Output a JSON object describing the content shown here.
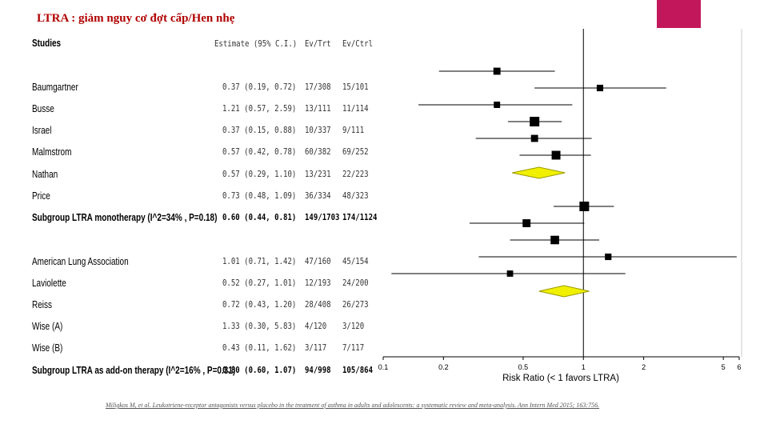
{
  "slide": {
    "title": "LTRA : giảm nguy cơ đợt cấp/Hen nhẹ",
    "citation": "Miligkos M, et al. Leukotriene-receptor antagonists versus placebo in the treatment of asthma in adults and adolescents: a systematic review and meta-analysis. Ann Intern Med 2015; 163:756."
  },
  "table": {
    "headers": {
      "studies": "Studies",
      "estimate": "Estimate (95% C.I.)",
      "ev_trt": "Ev/Trt",
      "ev_ctrl": "Ev/Ctrl"
    }
  },
  "chart_data": {
    "type": "forest",
    "xlabel": "Risk Ratio (< 1 favors LTRA)",
    "x_scale": "log",
    "xlim": [
      0.1,
      6
    ],
    "x_ticks": [
      "0.1",
      "0.2",
      "0.5",
      "1",
      "2",
      "5",
      "6"
    ],
    "reference_line": 1,
    "rows": [
      {
        "study": "Baumgartner",
        "estimate": "0.37 (0.19, 0.72)",
        "ev_trt": "17/308",
        "ev_ctrl": "15/101",
        "rr": 0.37,
        "lo": 0.19,
        "hi": 0.72,
        "weight": 0.55,
        "kind": "study"
      },
      {
        "study": "Busse",
        "estimate": "1.21 (0.57, 2.59)",
        "ev_trt": "13/111",
        "ev_ctrl": "11/114",
        "rr": 1.21,
        "lo": 0.57,
        "hi": 2.59,
        "weight": 0.45,
        "kind": "study"
      },
      {
        "study": "Israel",
        "estimate": "0.37 (0.15, 0.88)",
        "ev_trt": "10/337",
        "ev_ctrl": "9/111",
        "rr": 0.37,
        "lo": 0.15,
        "hi": 0.88,
        "weight": 0.42,
        "kind": "study"
      },
      {
        "study": "Malmstrom",
        "estimate": "0.57 (0.42, 0.78)",
        "ev_trt": "60/382",
        "ev_ctrl": "69/252",
        "rr": 0.57,
        "lo": 0.42,
        "hi": 0.78,
        "weight": 1.0,
        "kind": "study"
      },
      {
        "study": "Nathan",
        "estimate": "0.57 (0.29, 1.10)",
        "ev_trt": "13/231",
        "ev_ctrl": "22/223",
        "rr": 0.57,
        "lo": 0.29,
        "hi": 1.1,
        "weight": 0.55,
        "kind": "study"
      },
      {
        "study": "Price",
        "estimate": "0.73 (0.48, 1.09)",
        "ev_trt": "36/334",
        "ev_ctrl": "48/323",
        "rr": 0.73,
        "lo": 0.48,
        "hi": 1.09,
        "weight": 0.85,
        "kind": "study"
      },
      {
        "study": "Subgroup LTRA monotherapy (I^2=34% , P=0.18)",
        "estimate": "0.60 (0.44, 0.81)",
        "ev_trt": "149/1703",
        "ev_ctrl": "174/1124",
        "rr": 0.6,
        "lo": 0.44,
        "hi": 0.81,
        "kind": "subgroup"
      },
      {
        "study": "American Lung Association",
        "estimate": "1.01 (0.71, 1.42)",
        "ev_trt": "47/160",
        "ev_ctrl": "45/154",
        "rr": 1.01,
        "lo": 0.71,
        "hi": 1.42,
        "weight": 1.0,
        "kind": "study"
      },
      {
        "study": "Laviolette",
        "estimate": "0.52 (0.27, 1.01)",
        "ev_trt": "12/193",
        "ev_ctrl": "24/200",
        "rr": 0.52,
        "lo": 0.27,
        "hi": 1.01,
        "weight": 0.7,
        "kind": "study"
      },
      {
        "study": "Reiss",
        "estimate": "0.72 (0.43, 1.20)",
        "ev_trt": "28/408",
        "ev_ctrl": "26/273",
        "rr": 0.72,
        "lo": 0.43,
        "hi": 1.2,
        "weight": 0.8,
        "kind": "study"
      },
      {
        "study": "Wise (A)",
        "estimate": "1.33 (0.30, 5.83)",
        "ev_trt": "4/120",
        "ev_ctrl": "3/120",
        "rr": 1.33,
        "lo": 0.3,
        "hi": 5.83,
        "weight": 0.45,
        "kind": "study"
      },
      {
        "study": "Wise (B)",
        "estimate": "0.43 (0.11, 1.62)",
        "ev_trt": "3/117",
        "ev_ctrl": "7/117",
        "rr": 0.43,
        "lo": 0.11,
        "hi": 1.62,
        "weight": 0.4,
        "kind": "study"
      },
      {
        "study": "Subgroup LTRA as add-on therapy (I^2=16% , P=0.31)",
        "estimate": "0.80 (0.60, 1.07)",
        "ev_trt": "94/998",
        "ev_ctrl": "105/864",
        "rr": 0.8,
        "lo": 0.6,
        "hi": 1.07,
        "kind": "subgroup"
      }
    ],
    "colors": {
      "diamond_fill": "#f0f000",
      "diamond_stroke": "#9a9a00",
      "marker": "#000000",
      "accent": "#c2185b",
      "title": "#b00000"
    }
  }
}
